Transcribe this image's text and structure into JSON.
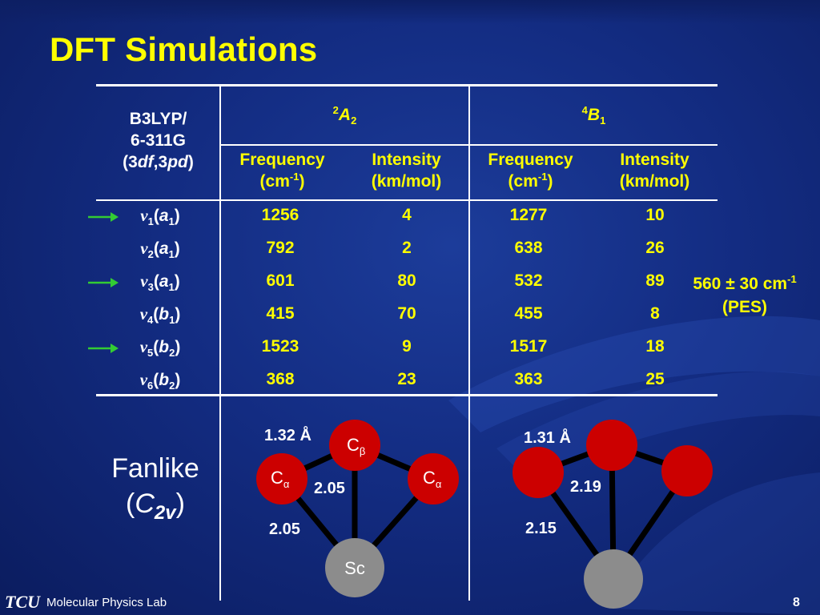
{
  "slide": {
    "title": "DFT Simulations",
    "page_number": "8",
    "footer": "Molecular Physics Lab",
    "logo_text": "TCU"
  },
  "table": {
    "method": [
      "B3LYP/",
      "6-311G",
      "(3df,3pd)"
    ],
    "states": [
      {
        "sup": "2",
        "label": "A",
        "sub": "2"
      },
      {
        "sup": "4",
        "label": "B",
        "sub": "1"
      }
    ],
    "col_headers": [
      {
        "line1": "Frequency",
        "line2": "(cm",
        "sup": "-1",
        "line2_end": ")"
      },
      {
        "line1": "Intensity",
        "line2": "(km/mol)"
      },
      {
        "line1": "Frequency",
        "line2": "(cm",
        "sup": "-1",
        "line2_end": ")"
      },
      {
        "line1": "Intensity",
        "line2": "(km/mol)"
      }
    ],
    "rows": [
      {
        "nu": "v",
        "idx": "1",
        "sym": "a",
        "sym_sub": "1",
        "arrow": true,
        "values": [
          "1256",
          "4",
          "1277",
          "10"
        ]
      },
      {
        "nu": "v",
        "idx": "2",
        "sym": "a",
        "sym_sub": "1",
        "arrow": false,
        "values": [
          "792",
          "2",
          "638",
          "26"
        ]
      },
      {
        "nu": "v",
        "idx": "3",
        "sym": "a",
        "sym_sub": "1",
        "arrow": true,
        "values": [
          "601",
          "80",
          "532",
          "89"
        ]
      },
      {
        "nu": "v",
        "idx": "4",
        "sym": "b",
        "sym_sub": "1",
        "arrow": false,
        "values": [
          "415",
          "70",
          "455",
          "8"
        ]
      },
      {
        "nu": "v",
        "idx": "5",
        "sym": "b",
        "sym_sub": "2",
        "arrow": true,
        "values": [
          "1523",
          "9",
          "1517",
          "18"
        ]
      },
      {
        "nu": "v",
        "idx": "6",
        "sym": "b",
        "sym_sub": "2",
        "arrow": false,
        "values": [
          "368",
          "23",
          "363",
          "25"
        ]
      }
    ],
    "pes_note": {
      "line1": "560 ± 30 cm",
      "sup": "-1",
      "line2": "(PES)"
    }
  },
  "structure": {
    "label_line1": "Fanlike",
    "label_open": "(",
    "label_italic": "C",
    "label_sub": "2v",
    "label_close": ")",
    "left": {
      "bond_top": "1.32 Å",
      "bond_mid": "2.05",
      "bond_low": "2.05",
      "atom_top": "C",
      "atom_top_sub": "β",
      "atom_left": "C",
      "atom_left_sub": "α",
      "atom_right": "C",
      "atom_right_sub": "α",
      "atom_bottom": "Sc"
    },
    "right": {
      "bond_top": "1.31 Å",
      "bond_mid": "2.19",
      "bond_low": "2.15"
    },
    "colors": {
      "carbon": "#cc0000",
      "scandium": "#8c8c8c",
      "bond": "#000000"
    }
  },
  "colors": {
    "title": "#ffff00",
    "value": "#ffff00",
    "arrow": "#33cc33",
    "background": "#132c82"
  }
}
